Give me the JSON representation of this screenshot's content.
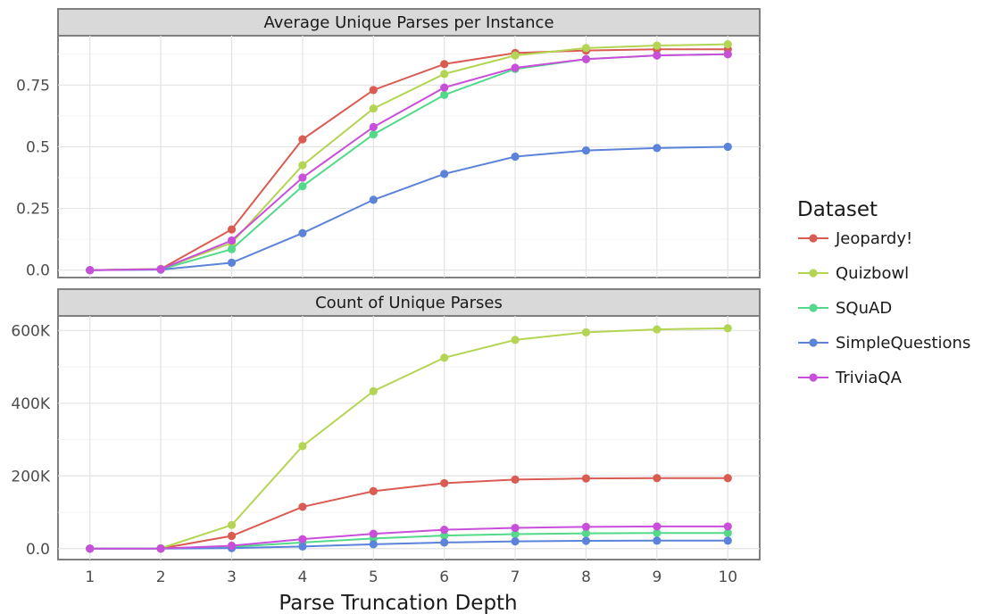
{
  "chart_data": {
    "type": "line",
    "x": [
      1,
      2,
      3,
      4,
      5,
      6,
      7,
      8,
      9,
      10
    ],
    "xlabel": "Parse Truncation Depth",
    "legend": {
      "title": "Dataset",
      "placement": "right"
    },
    "grid": true,
    "series_colors": {
      "Jeopardy!": "#d95b52",
      "Quizbowl": "#b3d553",
      "SQuAD": "#52d98a",
      "SimpleQuestions": "#5b83d9",
      "TriviaQA": "#c94fdb"
    },
    "panels": [
      {
        "title": "Average Unique Parses per Instance",
        "ylim": [
          -0.03,
          0.95
        ],
        "yticks": [
          0.0,
          0.25,
          0.5,
          0.75
        ],
        "ytick_labels": [
          "0.0",
          "0.25",
          "0.5",
          "0.75"
        ],
        "series": [
          {
            "name": "Jeopardy!",
            "values": [
              0,
              0.005,
              0.165,
              0.53,
              0.73,
              0.835,
              0.88,
              0.89,
              0.895,
              0.895
            ]
          },
          {
            "name": "Quizbowl",
            "values": [
              0,
              0.005,
              0.11,
              0.425,
              0.655,
              0.795,
              0.87,
              0.9,
              0.91,
              0.915
            ]
          },
          {
            "name": "SQuAD",
            "values": [
              0,
              0.003,
              0.085,
              0.34,
              0.55,
              0.71,
              0.815,
              0.855,
              0.87,
              0.875
            ]
          },
          {
            "name": "SimpleQuestions",
            "values": [
              0,
              0.002,
              0.03,
              0.15,
              0.285,
              0.39,
              0.46,
              0.485,
              0.495,
              0.5
            ]
          },
          {
            "name": "TriviaQA",
            "values": [
              0,
              0.004,
              0.12,
              0.375,
              0.58,
              0.74,
              0.82,
              0.855,
              0.87,
              0.875
            ]
          }
        ]
      },
      {
        "title": "Count of Unique Parses",
        "ylim": [
          -30000,
          640000
        ],
        "yticks": [
          0,
          200000,
          400000,
          600000
        ],
        "ytick_labels": [
          "0.0",
          "200K",
          "400K",
          "600K"
        ],
        "series": [
          {
            "name": "Jeopardy!",
            "values": [
              0,
              500,
              35000,
              115000,
              158000,
              180000,
              190000,
              193000,
              194000,
              194000
            ]
          },
          {
            "name": "Quizbowl",
            "values": [
              0,
              1000,
              65000,
              282000,
              433000,
              525000,
              574000,
              595000,
              603000,
              606000
            ]
          },
          {
            "name": "SQuAD",
            "values": [
              0,
              300,
              5000,
              17000,
              28000,
              36000,
              40000,
              42000,
              43000,
              43000
            ]
          },
          {
            "name": "SimpleQuestions",
            "values": [
              0,
              100,
              1500,
              6000,
              12000,
              17000,
              20000,
              21500,
              22000,
              22000
            ]
          },
          {
            "name": "TriviaQA",
            "values": [
              0,
              300,
              8000,
              26000,
              41000,
              52000,
              57000,
              60000,
              61000,
              61000
            ]
          }
        ]
      }
    ]
  }
}
